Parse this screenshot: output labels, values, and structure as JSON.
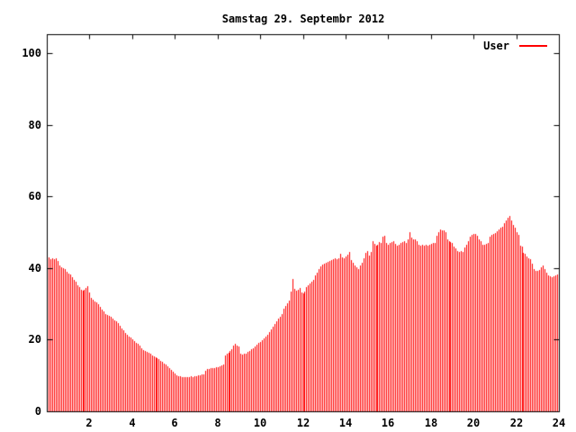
{
  "chart_data": {
    "type": "bar",
    "title": "Samstag 29. Septembr 2012",
    "xlabel": "",
    "ylabel": "",
    "xlim": [
      0,
      24
    ],
    "ylim": [
      0,
      105
    ],
    "grid": false,
    "legend_position": "top-right-inside",
    "x_tick_labels": [
      "2",
      "4",
      "6",
      "8",
      "10",
      "12",
      "14",
      "16",
      "18",
      "20",
      "22",
      "24"
    ],
    "x_tick_values": [
      2,
      4,
      6,
      8,
      10,
      12,
      14,
      16,
      18,
      20,
      22,
      24
    ],
    "y_tick_labels": [
      "0",
      "20",
      "40",
      "60",
      "80",
      "100"
    ],
    "y_tick_values": [
      0,
      20,
      40,
      60,
      80,
      100
    ],
    "x_start_hour": 0.0833,
    "x_interval_minutes": 5,
    "colors": {
      "bar": "#ff0000",
      "axis": "#000000",
      "text": "#000000",
      "background": "#ffffff"
    },
    "series": [
      {
        "name": "User",
        "color": "#ff0000",
        "values": [
          43.0,
          42.5,
          42.8,
          42.4,
          42.6,
          41.9,
          40.6,
          40.3,
          39.9,
          39.7,
          38.9,
          38.4,
          38.1,
          37.4,
          36.8,
          36.1,
          35.3,
          34.6,
          34.0,
          33.7,
          33.9,
          34.5,
          34.9,
          33.2,
          31.6,
          31.2,
          30.7,
          30.4,
          29.8,
          29.1,
          28.4,
          27.8,
          27.2,
          26.9,
          26.6,
          26.3,
          25.9,
          25.4,
          25.1,
          24.6,
          23.8,
          23.1,
          22.5,
          21.9,
          21.4,
          20.9,
          20.5,
          20.1,
          19.6,
          19.2,
          18.8,
          18.3,
          17.6,
          17.1,
          16.8,
          16.6,
          16.4,
          16.0,
          15.7,
          15.4,
          15.1,
          14.8,
          14.5,
          14.1,
          13.7,
          13.4,
          13.1,
          12.6,
          12.1,
          11.6,
          11.0,
          10.5,
          10.1,
          9.9,
          9.7,
          9.6,
          9.5,
          9.6,
          9.5,
          9.6,
          9.7,
          9.6,
          9.8,
          9.9,
          10.0,
          10.1,
          10.2,
          10.4,
          11.2,
          11.7,
          11.9,
          12.0,
          12.1,
          12.0,
          12.2,
          12.4,
          12.6,
          12.9,
          13.1,
          15.6,
          16.1,
          16.4,
          16.9,
          17.4,
          18.3,
          18.9,
          18.4,
          18.2,
          16.1,
          15.8,
          16.0,
          16.2,
          16.5,
          16.9,
          17.3,
          17.7,
          18.2,
          18.7,
          19.1,
          19.4,
          19.8,
          20.3,
          20.9,
          21.4,
          22.1,
          22.8,
          23.6,
          24.3,
          25.1,
          25.8,
          26.5,
          27.1,
          28.6,
          29.4,
          30.2,
          31.0,
          33.3,
          36.9,
          34.1,
          33.6,
          33.9,
          34.3,
          33.1,
          32.8,
          33.5,
          34.6,
          35.3,
          35.8,
          36.2,
          36.8,
          37.9,
          38.8,
          39.7,
          40.4,
          40.9,
          41.3,
          41.5,
          41.7,
          41.9,
          42.1,
          42.4,
          42.6,
          42.5,
          42.8,
          44.0,
          42.9,
          42.7,
          43.1,
          43.6,
          44.5,
          42.2,
          41.4,
          40.8,
          40.3,
          39.6,
          40.7,
          41.5,
          42.6,
          44.1,
          44.8,
          43.5,
          44.5,
          47.6,
          46.8,
          46.3,
          46.6,
          47.2,
          47.0,
          48.8,
          48.9,
          47.0,
          46.6,
          46.9,
          47.2,
          47.4,
          46.8,
          46.3,
          46.6,
          46.9,
          47.2,
          47.5,
          47.1,
          48.0,
          49.9,
          48.6,
          48.1,
          47.9,
          47.6,
          46.5,
          46.2,
          46.4,
          46.2,
          46.5,
          46.3,
          46.6,
          46.8,
          46.9,
          47.1,
          48.9,
          49.9,
          50.7,
          50.4,
          50.6,
          50.1,
          48.0,
          47.4,
          47.3,
          47.1,
          46.1,
          45.4,
          44.8,
          44.5,
          44.6,
          44.4,
          45.7,
          46.4,
          47.6,
          48.8,
          49.3,
          49.6,
          49.4,
          49.1,
          47.9,
          47.6,
          46.6,
          46.4,
          46.8,
          47.1,
          48.7,
          49.3,
          49.5,
          49.8,
          50.2,
          50.8,
          51.3,
          51.6,
          52.4,
          53.3,
          54.1,
          54.6,
          53.2,
          52.1,
          51.3,
          50.1,
          49.2,
          46.3,
          45.9,
          44.3,
          43.9,
          43.2,
          42.7,
          42.4,
          41.1,
          39.8,
          39.3,
          39.1,
          39.4,
          40.2,
          40.7,
          39.6,
          38.6,
          38.0,
          37.6,
          37.4,
          37.7,
          38.0,
          38.3,
          38.6
        ]
      }
    ]
  }
}
